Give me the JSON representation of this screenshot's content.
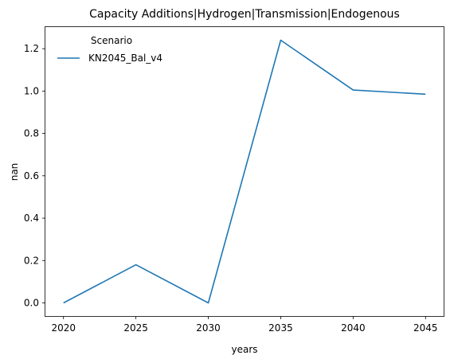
{
  "chart_data": {
    "type": "line",
    "title": "Capacity Additions|Hydrogen|Transmission|Endogenous",
    "xlabel": "years",
    "ylabel": "nan",
    "x": [
      2020,
      2025,
      2030,
      2035,
      2040,
      2045
    ],
    "xticks": [
      "2020",
      "2025",
      "2030",
      "2035",
      "2040",
      "2045"
    ],
    "yticks": [
      "0.0",
      "0.2",
      "0.4",
      "0.6",
      "0.8",
      "1.0",
      "1.2"
    ],
    "ylim": [
      -0.062,
      1.302
    ],
    "xlim": [
      2018.75,
      2046.25
    ],
    "grid": false,
    "legend": {
      "title": "Scenario",
      "placement": "top-left"
    },
    "series": [
      {
        "name": "KN2045_Bal_v4",
        "color": "#1f77b4",
        "values": [
          0.0,
          0.18,
          0.0,
          1.24,
          1.005,
          0.985
        ]
      }
    ]
  }
}
